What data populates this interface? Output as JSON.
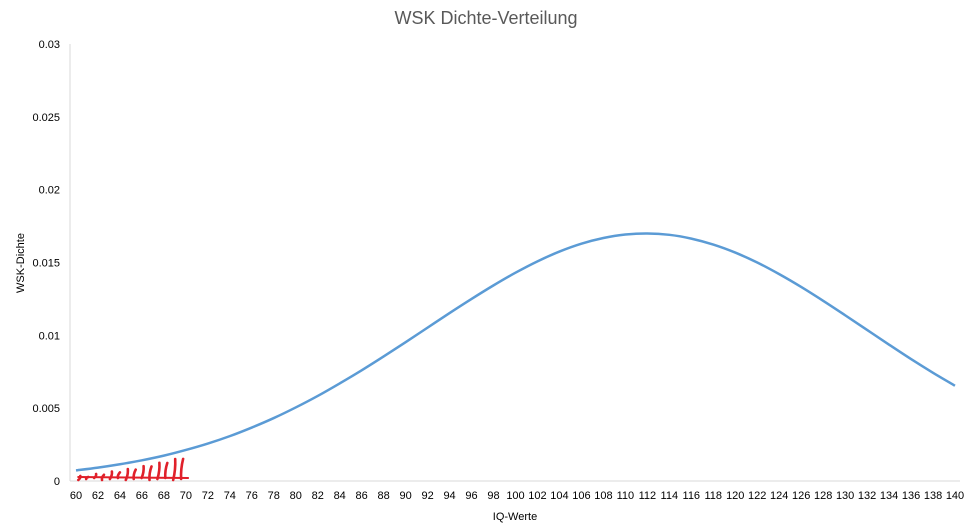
{
  "chart_data": {
    "type": "line",
    "title": "WSK Dichte-Verteilung",
    "xlabel": "IQ-Werte",
    "ylabel": "WSK-Dichte",
    "x_ticks": [
      "60",
      "62",
      "64",
      "66",
      "68",
      "70",
      "72",
      "74",
      "76",
      "78",
      "80",
      "82",
      "84",
      "86",
      "88",
      "90",
      "92",
      "94",
      "96",
      "98",
      "100",
      "102",
      "104",
      "106",
      "108",
      "110",
      "112",
      "114",
      "116",
      "118",
      "120",
      "122",
      "124",
      "126",
      "128",
      "130",
      "132",
      "134",
      "136",
      "138",
      "140"
    ],
    "y_ticks": [
      "0",
      "0.005",
      "0.01",
      "0.015",
      "0.02",
      "0.025",
      "0.03"
    ],
    "xlim": [
      60,
      140
    ],
    "ylim": [
      0,
      0.03
    ],
    "grid": false,
    "series": [
      {
        "color": "#5B9BD5",
        "x": [
          60,
          62,
          64,
          66,
          68,
          70,
          72,
          74,
          76,
          78,
          80,
          82,
          84,
          86,
          88,
          90,
          92,
          94,
          96,
          98,
          100,
          102,
          104,
          106,
          108,
          110,
          112,
          114,
          116,
          118,
          120,
          122,
          124,
          126,
          128,
          130,
          132,
          134,
          136,
          138,
          140
        ],
        "y": [
          0.00073,
          0.00092,
          0.00115,
          0.00142,
          0.00174,
          0.00213,
          0.00257,
          0.00308,
          0.00367,
          0.00432,
          0.00505,
          0.00584,
          0.0067,
          0.0076,
          0.00855,
          0.00953,
          0.01053,
          0.01153,
          0.0125,
          0.01343,
          0.0143,
          0.01508,
          0.01575,
          0.01629,
          0.01668,
          0.01692,
          0.01699,
          0.0169,
          0.01664,
          0.01623,
          0.01568,
          0.015,
          0.0142,
          0.01332,
          0.01237,
          0.01138,
          0.01037,
          0.00936,
          0.00837,
          0.00743,
          0.00654
        ]
      }
    ],
    "annotation_color": "#E0202A"
  }
}
